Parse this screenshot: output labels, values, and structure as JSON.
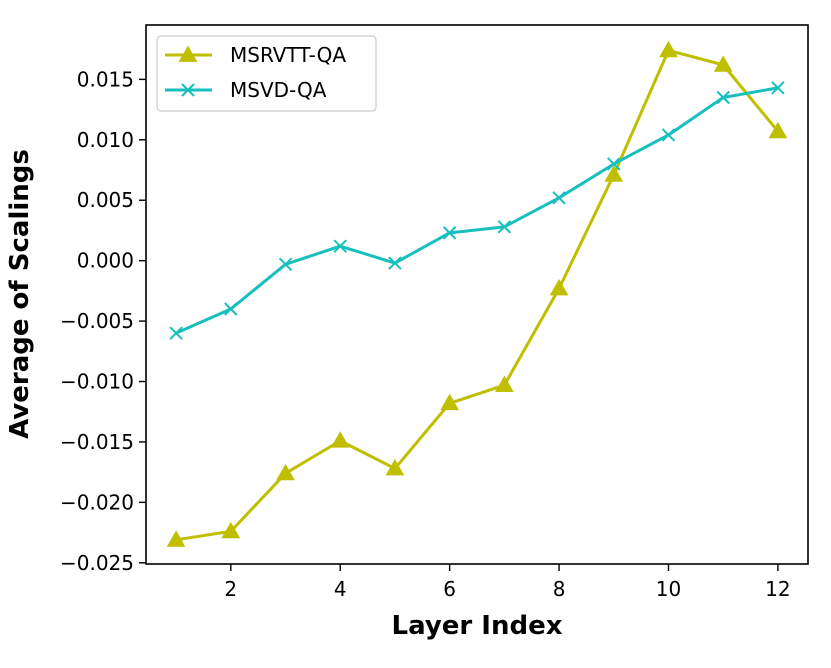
{
  "chart_data": {
    "type": "line",
    "title": "",
    "xlabel": "Layer Index",
    "ylabel": "Average of Scalings",
    "xlim": [
      0.45,
      12.55
    ],
    "ylim": [
      -0.0251,
      0.0195
    ],
    "x_ticks": [
      2,
      4,
      6,
      8,
      10,
      12
    ],
    "x_tick_labels": [
      "2",
      "4",
      "6",
      "8",
      "10",
      "12"
    ],
    "y_ticks": [
      -0.025,
      -0.02,
      -0.015,
      -0.01,
      -0.005,
      0.0,
      0.005,
      0.01,
      0.015
    ],
    "y_tick_labels": [
      "−0.025",
      "−0.020",
      "−0.015",
      "−0.010",
      "−0.005",
      "0.000",
      "0.005",
      "0.010",
      "0.015"
    ],
    "grid": false,
    "legend_position": "top-left",
    "x": [
      1,
      2,
      3,
      4,
      5,
      6,
      7,
      8,
      9,
      10,
      11,
      12
    ],
    "series": [
      {
        "name": "MSRVTT-QA",
        "color": "#bfbf00",
        "marker": "triangle",
        "values": [
          -0.0231,
          -0.0224,
          -0.0176,
          -0.0149,
          -0.0172,
          -0.0118,
          -0.0103,
          -0.0023,
          0.0071,
          0.0174,
          0.0162,
          0.0107
        ]
      },
      {
        "name": "MSVD-QA",
        "color": "#17bfbf",
        "marker": "x",
        "values": [
          -0.006,
          -0.004,
          -0.0003,
          0.0012,
          -0.0002,
          0.0023,
          0.0028,
          0.0052,
          0.008,
          0.0104,
          0.0135,
          0.0143
        ]
      }
    ]
  }
}
